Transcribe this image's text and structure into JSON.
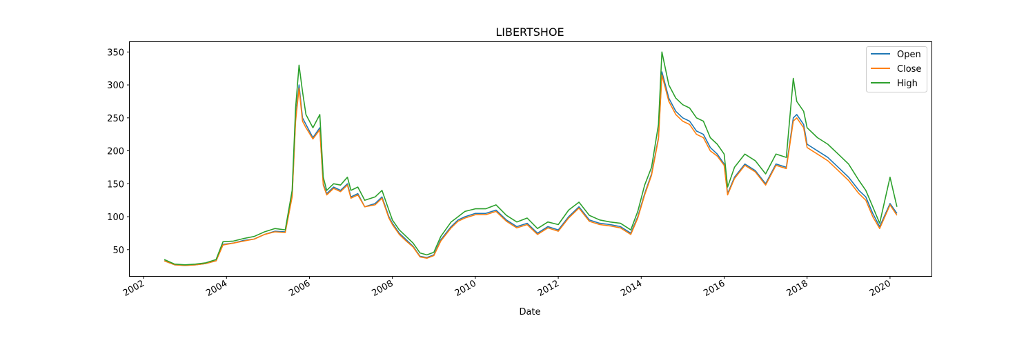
{
  "chart_data": {
    "type": "line",
    "title": "LIBERTSHOE",
    "xlabel": "Date",
    "ylabel": "",
    "xlim": [
      "2001-09",
      "2021-01"
    ],
    "ylim": [
      10,
      365
    ],
    "x_ticks": [
      "2002",
      "2004",
      "2006",
      "2008",
      "2010",
      "2012",
      "2014",
      "2016",
      "2018",
      "2020"
    ],
    "y_ticks": [
      50,
      100,
      150,
      200,
      250,
      300,
      350
    ],
    "grid": false,
    "legend": "top-right",
    "colors": {
      "Open": "#1f77b4",
      "Close": "#ff7f0e",
      "High": "#2ca02c"
    },
    "x": [
      "2002-07",
      "2002-10",
      "2003-01",
      "2003-04",
      "2003-07",
      "2003-10",
      "2003-12",
      "2004-03",
      "2004-06",
      "2004-09",
      "2004-12",
      "2005-03",
      "2005-06",
      "2005-08",
      "2005-09",
      "2005-10",
      "2005-11",
      "2005-12",
      "2006-02",
      "2006-04",
      "2006-05",
      "2006-06",
      "2006-08",
      "2006-10",
      "2006-12",
      "2007-01",
      "2007-03",
      "2007-05",
      "2007-08",
      "2007-10",
      "2007-12",
      "2008-01",
      "2008-03",
      "2008-05",
      "2008-07",
      "2008-09",
      "2008-11",
      "2009-01",
      "2009-03",
      "2009-06",
      "2009-08",
      "2009-10",
      "2010-01",
      "2010-04",
      "2010-07",
      "2010-10",
      "2011-01",
      "2011-04",
      "2011-07",
      "2011-10",
      "2012-01",
      "2012-04",
      "2012-07",
      "2012-10",
      "2013-01",
      "2013-04",
      "2013-07",
      "2013-10",
      "2013-12",
      "2014-02",
      "2014-04",
      "2014-06",
      "2014-07",
      "2014-09",
      "2014-11",
      "2015-01",
      "2015-03",
      "2015-05",
      "2015-07",
      "2015-09",
      "2015-11",
      "2016-01",
      "2016-02",
      "2016-04",
      "2016-07",
      "2016-10",
      "2017-01",
      "2017-04",
      "2017-07",
      "2017-09",
      "2017-10",
      "2017-12",
      "2018-01",
      "2018-04",
      "2018-07",
      "2018-10",
      "2019-01",
      "2019-04",
      "2019-06",
      "2019-08",
      "2019-10",
      "2020-01",
      "2020-03"
    ],
    "series": [
      {
        "name": "Open",
        "values": [
          33,
          27,
          26,
          27,
          29,
          33,
          58,
          60,
          64,
          66,
          73,
          78,
          77,
          132,
          250,
          300,
          250,
          240,
          220,
          235,
          150,
          135,
          145,
          140,
          150,
          130,
          135,
          115,
          120,
          130,
          100,
          90,
          75,
          65,
          55,
          40,
          38,
          42,
          65,
          85,
          95,
          100,
          105,
          105,
          110,
          95,
          85,
          90,
          75,
          85,
          80,
          100,
          115,
          95,
          90,
          88,
          85,
          75,
          100,
          135,
          165,
          220,
          320,
          280,
          260,
          250,
          245,
          230,
          225,
          205,
          195,
          180,
          135,
          160,
          180,
          170,
          150,
          180,
          175,
          250,
          255,
          240,
          210,
          200,
          190,
          175,
          160,
          140,
          130,
          105,
          85,
          120,
          105
        ]
      },
      {
        "name": "Close",
        "values": [
          33,
          27,
          26,
          27,
          29,
          33,
          57,
          60,
          63,
          66,
          73,
          77,
          76,
          130,
          245,
          295,
          245,
          235,
          218,
          232,
          148,
          133,
          143,
          138,
          148,
          128,
          133,
          115,
          118,
          128,
          98,
          88,
          73,
          63,
          54,
          39,
          37,
          41,
          63,
          83,
          93,
          98,
          103,
          103,
          108,
          93,
          83,
          88,
          73,
          83,
          78,
          98,
          113,
          93,
          88,
          86,
          83,
          73,
          98,
          133,
          163,
          218,
          315,
          275,
          255,
          245,
          240,
          225,
          220,
          200,
          192,
          178,
          133,
          158,
          178,
          168,
          148,
          178,
          173,
          245,
          250,
          235,
          205,
          195,
          185,
          170,
          155,
          135,
          125,
          100,
          82,
          118,
          102
        ]
      },
      {
        "name": "High",
        "values": [
          35,
          28,
          27,
          28,
          30,
          35,
          62,
          63,
          67,
          70,
          77,
          82,
          80,
          140,
          265,
          330,
          290,
          255,
          235,
          255,
          160,
          140,
          150,
          148,
          160,
          140,
          145,
          125,
          130,
          140,
          110,
          95,
          80,
          70,
          60,
          45,
          42,
          46,
          70,
          92,
          100,
          108,
          112,
          112,
          118,
          102,
          92,
          98,
          82,
          92,
          88,
          110,
          122,
          102,
          95,
          92,
          90,
          80,
          108,
          148,
          175,
          240,
          350,
          300,
          280,
          270,
          265,
          250,
          245,
          220,
          210,
          195,
          145,
          175,
          195,
          185,
          165,
          195,
          190,
          310,
          275,
          260,
          235,
          220,
          210,
          195,
          180,
          155,
          140,
          115,
          90,
          160,
          115
        ]
      }
    ]
  }
}
